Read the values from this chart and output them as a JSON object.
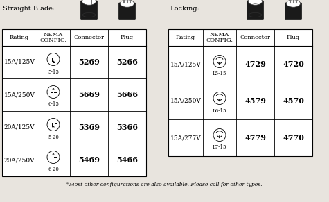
{
  "title_left": "Straight Blade:",
  "title_right": "Locking:",
  "footnote": "*Most other configurations are also available. Please call for other types.",
  "left_headers": [
    "Rating",
    "NEMA\nCONFIG.",
    "Connector",
    "Plug"
  ],
  "right_headers": [
    "Rating",
    "NEMA\nCONFIG.",
    "Connector",
    "Plug"
  ],
  "left_rows": [
    [
      "15A/125V",
      "5-15",
      "5269",
      "5266"
    ],
    [
      "15A/250V",
      "6-15",
      "5669",
      "5666"
    ],
    [
      "20A/125V",
      "5-20",
      "5369",
      "5366"
    ],
    [
      "20A/250V",
      "6-20",
      "5469",
      "5466"
    ]
  ],
  "right_rows": [
    [
      "15A/125V",
      "L5-15",
      "4729",
      "4720"
    ],
    [
      "15A/250V",
      "L6-15",
      "4579",
      "4570"
    ],
    [
      "15A/277V",
      "L7-15",
      "4779",
      "4770"
    ]
  ],
  "bg_color": "#e8e4de",
  "table_bg": "#ffffff",
  "border_color": "#000000",
  "text_color": "#000000"
}
